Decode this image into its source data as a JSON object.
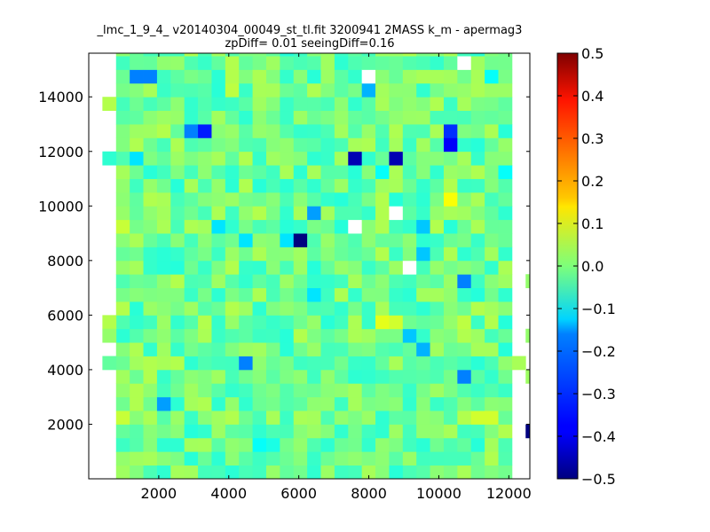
{
  "chart_data": {
    "type": "heatmap",
    "title_line1": "_lmc_1_9_4_ v20140304_00049_st_tl.fit 3200941 2MASS k_m - apermag3",
    "title_line2": "zpDiff= 0.01 seeingDiff=0.16",
    "xlabel": "",
    "ylabel": "",
    "xlim": [
      0,
      12600
    ],
    "ylim": [
      0,
      15600
    ],
    "x_ticks": [
      2000,
      4000,
      6000,
      8000,
      10000,
      12000
    ],
    "x_tick_labels": [
      "2000",
      "4000",
      "6000",
      "8000",
      "10000",
      "12000"
    ],
    "y_ticks": [
      2000,
      4000,
      6000,
      8000,
      10000,
      12000,
      14000
    ],
    "y_tick_labels": [
      "2000",
      "4000",
      "6000",
      "8000",
      "10000",
      "12000",
      "14000"
    ],
    "colorbar": {
      "colormap": "jet",
      "range": [
        -0.5,
        0.5
      ],
      "ticks": [
        0.5,
        0.4,
        0.3,
        0.2,
        0.1,
        0.0,
        -0.1,
        -0.2,
        -0.3,
        -0.4,
        -0.5
      ],
      "tick_labels": [
        "0.5",
        "0.4",
        "0.3",
        "0.2",
        "0.1",
        "0.0",
        "−0.1",
        "−0.2",
        "−0.3",
        "−0.4",
        "−0.5"
      ]
    },
    "grid": false,
    "cell_size": [
      390,
      500
    ],
    "grid_origin": [
      0,
      0
    ],
    "cells": [
      {
        "x": 2340,
        "y": 15250,
        "v": 0.02
      },
      {
        "x": 3510,
        "y": 15250,
        "v": -0.03
      },
      {
        "x": 5070,
        "y": 15250,
        "v": 0.03
      },
      {
        "x": 10530,
        "y": 15250,
        "v": null
      },
      {
        "x": 1170,
        "y": 14750,
        "v": -0.25
      },
      {
        "x": 1560,
        "y": 14750,
        "v": -0.25
      },
      {
        "x": 3900,
        "y": 14750,
        "v": 0.05
      },
      {
        "x": 7800,
        "y": 14750,
        "v": null
      },
      {
        "x": 11310,
        "y": 14750,
        "v": -0.12
      },
      {
        "x": 390,
        "y": 13750,
        "v": 0.05
      },
      {
        "x": 7800,
        "y": 14250,
        "v": -0.2
      },
      {
        "x": 3900,
        "y": 14250,
        "v": 0.06
      },
      {
        "x": 2730,
        "y": 12750,
        "v": -0.25
      },
      {
        "x": 3120,
        "y": 12750,
        "v": -0.35
      },
      {
        "x": 1950,
        "y": 12750,
        "v": 0.05
      },
      {
        "x": 10140,
        "y": 12750,
        "v": -0.33
      },
      {
        "x": 10140,
        "y": 12250,
        "v": -0.38
      },
      {
        "x": 1170,
        "y": 11750,
        "v": -0.15
      },
      {
        "x": 7410,
        "y": 11750,
        "v": -0.45
      },
      {
        "x": 8580,
        "y": 11750,
        "v": -0.45
      },
      {
        "x": 8190,
        "y": 11250,
        "v": -0.12
      },
      {
        "x": 11700,
        "y": 11250,
        "v": -0.12
      },
      {
        "x": 390,
        "y": 11750,
        "v": -0.08
      },
      {
        "x": 780,
        "y": 11750,
        "v": -0.05
      },
      {
        "x": 4680,
        "y": 9750,
        "v": 0.05
      },
      {
        "x": 6240,
        "y": 9750,
        "v": -0.22
      },
      {
        "x": 7410,
        "y": 9750,
        "v": -0.05
      },
      {
        "x": 8580,
        "y": 9750,
        "v": null
      },
      {
        "x": 10140,
        "y": 10250,
        "v": 0.12
      },
      {
        "x": 780,
        "y": 9250,
        "v": 0.07
      },
      {
        "x": 3510,
        "y": 9250,
        "v": -0.15
      },
      {
        "x": 7410,
        "y": 9250,
        "v": null
      },
      {
        "x": 9360,
        "y": 9250,
        "v": -0.18
      },
      {
        "x": 4290,
        "y": 8750,
        "v": -0.15
      },
      {
        "x": 5850,
        "y": 8750,
        "v": -0.5
      },
      {
        "x": 5460,
        "y": 8750,
        "v": -0.15
      },
      {
        "x": 9360,
        "y": 8250,
        "v": -0.18
      },
      {
        "x": 8970,
        "y": 7750,
        "v": null
      },
      {
        "x": 780,
        "y": 7750,
        "v": 0.02
      },
      {
        "x": 10530,
        "y": 7250,
        "v": -0.25
      },
      {
        "x": 12480,
        "y": 7250,
        "v": 0.02
      },
      {
        "x": 6240,
        "y": 6750,
        "v": -0.15
      },
      {
        "x": 780,
        "y": 6250,
        "v": 0.05
      },
      {
        "x": 8190,
        "y": 5750,
        "v": 0.1
      },
      {
        "x": 8580,
        "y": 5750,
        "v": 0.08
      },
      {
        "x": 10530,
        "y": 5750,
        "v": 0.06
      },
      {
        "x": 8970,
        "y": 5250,
        "v": -0.18
      },
      {
        "x": 390,
        "y": 5750,
        "v": 0.05
      },
      {
        "x": 390,
        "y": 5250,
        "v": 0.02
      },
      {
        "x": 12480,
        "y": 5250,
        "v": 0.02
      },
      {
        "x": 9360,
        "y": 4750,
        "v": -0.2
      },
      {
        "x": 4290,
        "y": 4250,
        "v": -0.25
      },
      {
        "x": 390,
        "y": 4250,
        "v": -0.03
      },
      {
        "x": 780,
        "y": 4250,
        "v": -0.02
      },
      {
        "x": 12090,
        "y": 4250,
        "v": 0.04
      },
      {
        "x": 10530,
        "y": 3750,
        "v": -0.25
      },
      {
        "x": 12480,
        "y": 3750,
        "v": 0.03
      },
      {
        "x": 1950,
        "y": 2750,
        "v": -0.22
      },
      {
        "x": 3510,
        "y": 2750,
        "v": -0.08
      },
      {
        "x": 10920,
        "y": 2250,
        "v": 0.08
      },
      {
        "x": 11310,
        "y": 2250,
        "v": 0.08
      },
      {
        "x": 780,
        "y": 2250,
        "v": 0.07
      },
      {
        "x": 12480,
        "y": 1750,
        "v": -0.5
      },
      {
        "x": 5070,
        "y": 1250,
        "v": -0.1
      },
      {
        "x": 4680,
        "y": 1250,
        "v": -0.12
      }
    ],
    "default_region": {
      "x_range": [
        975,
        11895
      ],
      "y_range": [
        0,
        15500
      ],
      "base_value": 0.0
    }
  }
}
